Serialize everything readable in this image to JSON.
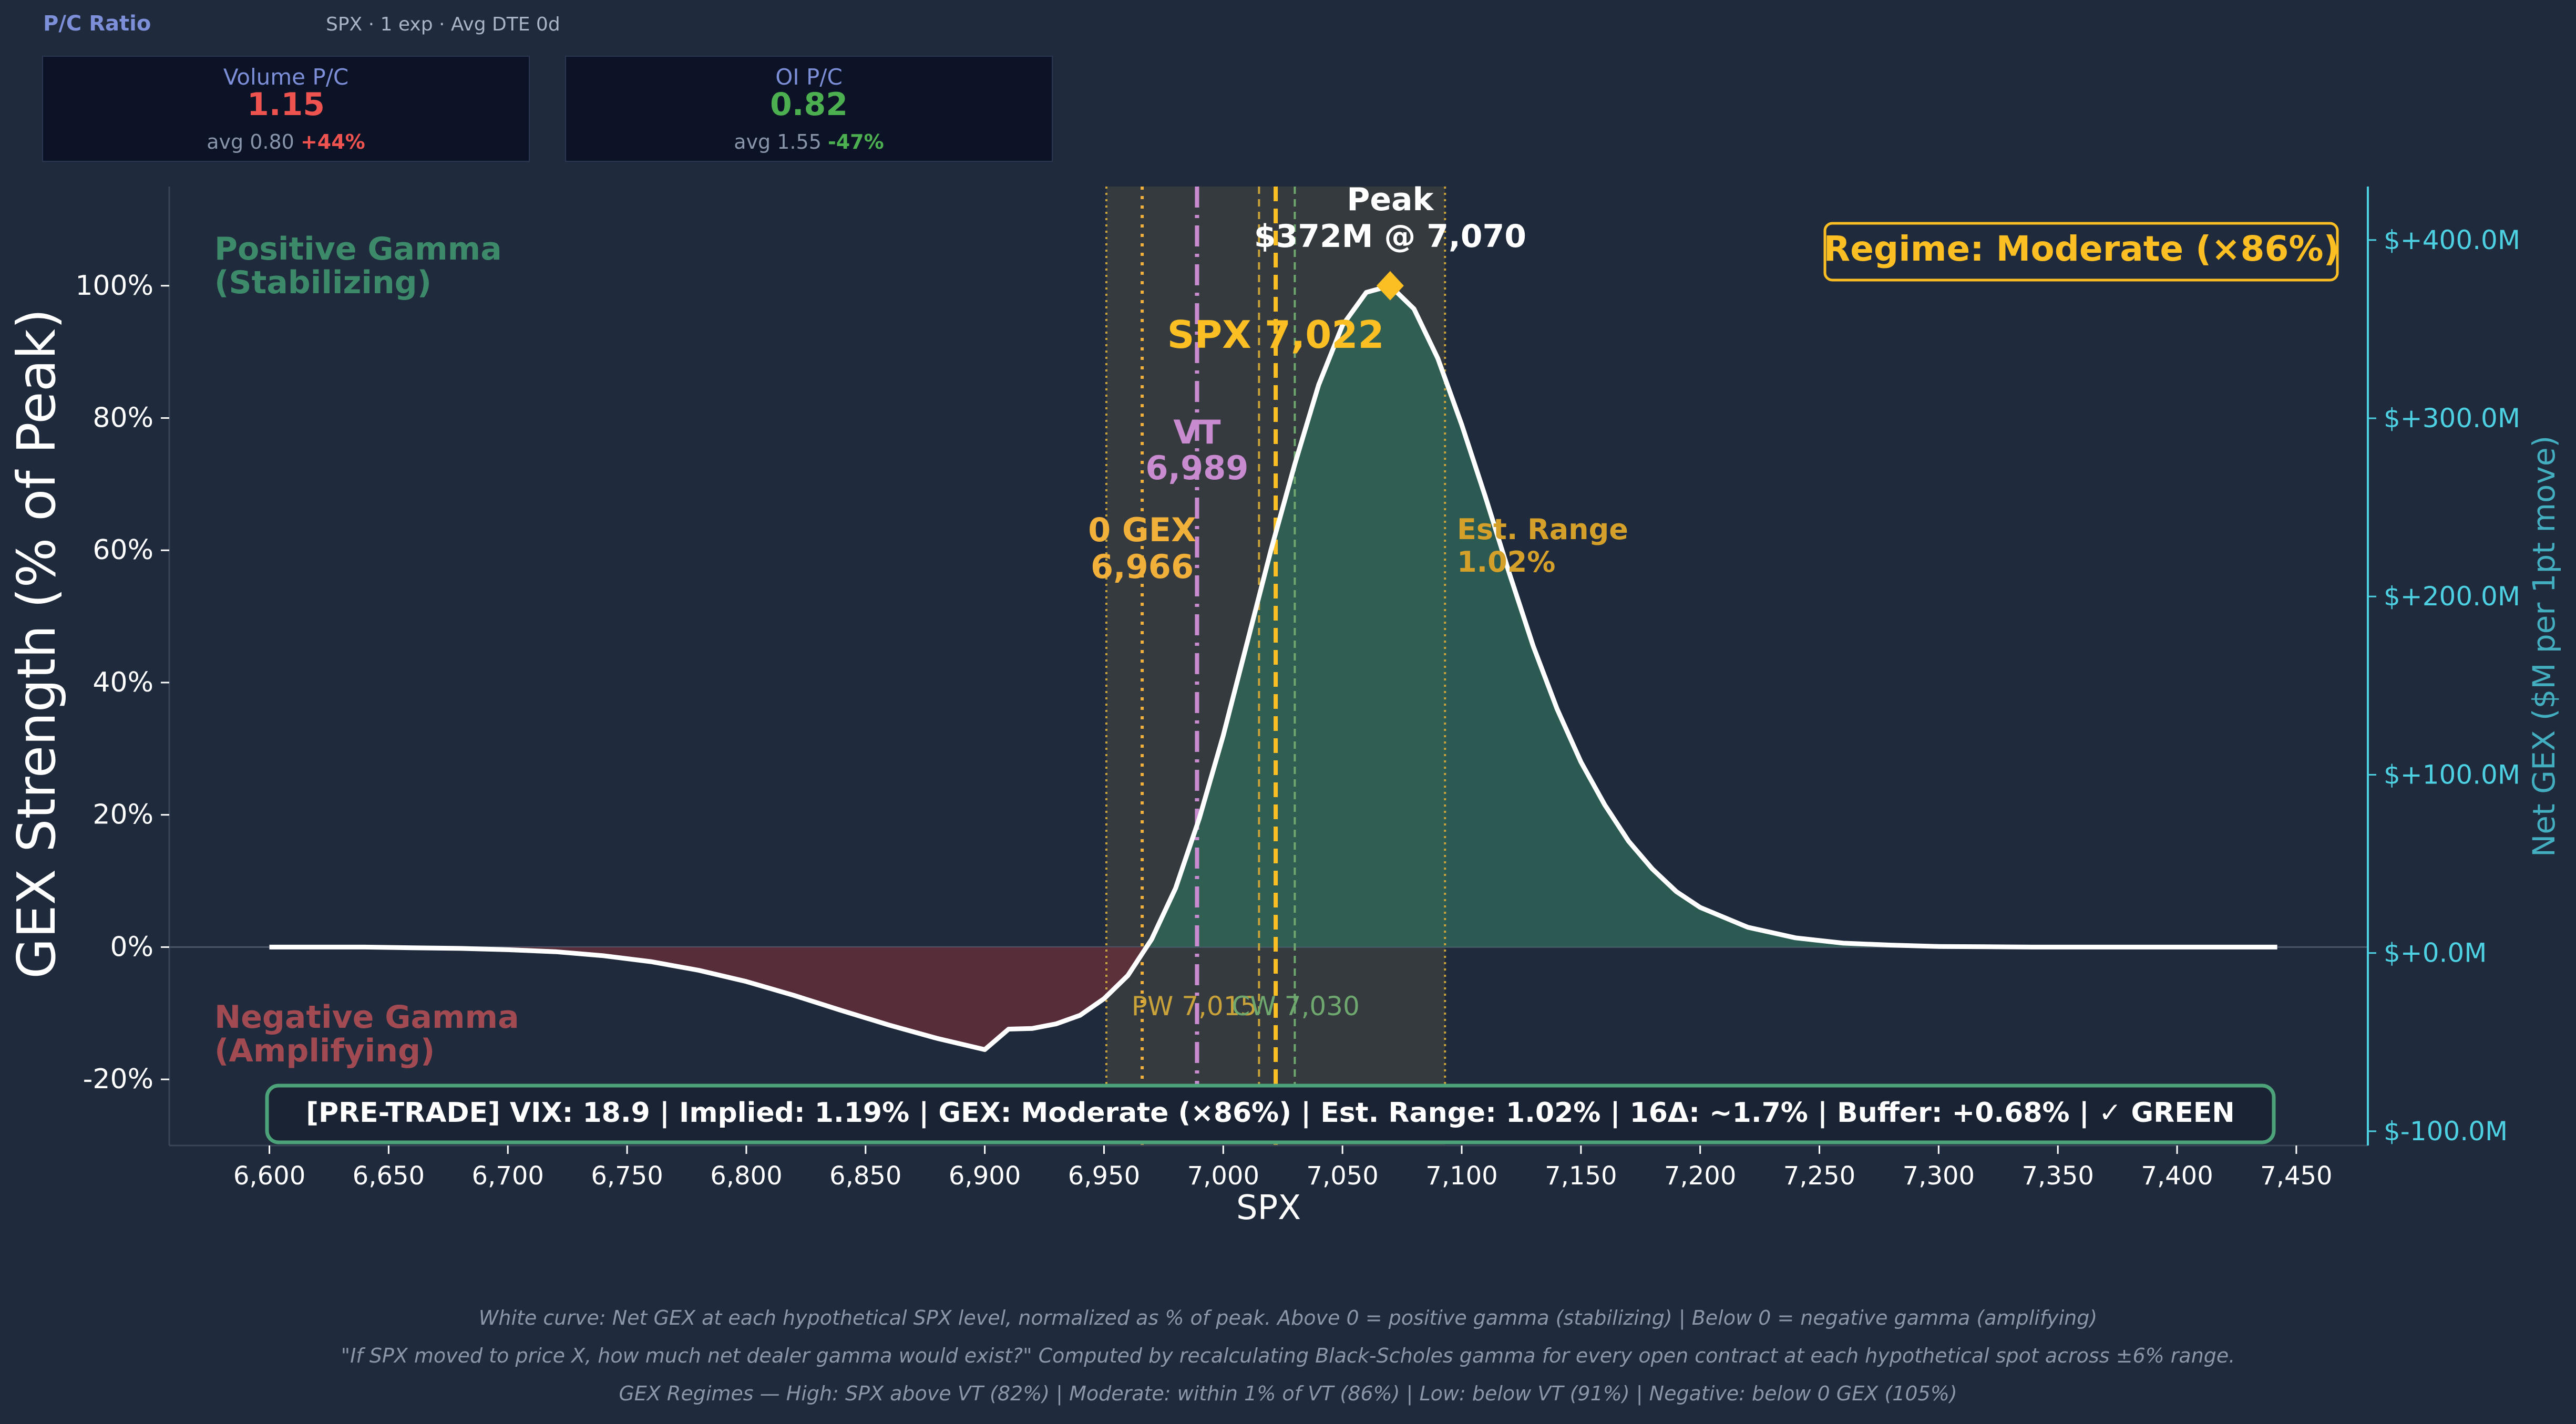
{
  "header": {
    "title": "P/C Ratio",
    "subtitle": "SPX · 1 exp · Avg DTE 0d"
  },
  "cards": [
    {
      "label": "Volume P/C",
      "value": "1.15",
      "avg_text": "avg 0.80",
      "change": "+44%",
      "color": "#ef5350"
    },
    {
      "label": "OI P/C",
      "value": "0.82",
      "avg_text": "avg 1.55",
      "change": "-47%",
      "color": "#4caf50"
    }
  ],
  "chart_data": {
    "type": "area",
    "x_label": "SPX",
    "y_label": "GEX Strength (% of Peak)",
    "y2_label": "Net GEX ($M per 1pt move)",
    "xlim": [
      6558,
      7480
    ],
    "ylim": [
      -30,
      115
    ],
    "y2lim": [
      -108,
      430
    ],
    "x_ticks": [
      6600,
      6650,
      6700,
      6750,
      6800,
      6850,
      6900,
      6950,
      7000,
      7050,
      7100,
      7150,
      7200,
      7250,
      7300,
      7350,
      7400,
      7450
    ],
    "x_tick_labels": [
      "6,600",
      "6,650",
      "6,700",
      "6,750",
      "6,800",
      "6,850",
      "6,900",
      "6,950",
      "7,000",
      "7,050",
      "7,100",
      "7,150",
      "7,200",
      "7,250",
      "7,300",
      "7,350",
      "7,400",
      "7,450"
    ],
    "y_ticks": [
      -20,
      0,
      20,
      40,
      60,
      80,
      100
    ],
    "y_tick_labels": [
      "-20%",
      "0%",
      "20%",
      "40%",
      "60%",
      "80%",
      "100%"
    ],
    "y2_ticks": [
      -100,
      0,
      100,
      200,
      300,
      400
    ],
    "y2_tick_labels": [
      "$-100.0M",
      "$+0.0M",
      "$+100.0M",
      "$+200.0M",
      "$+300.0M",
      "$+400.0M"
    ],
    "curve": {
      "x": [
        6600,
        6620,
        6640,
        6660,
        6680,
        6700,
        6720,
        6740,
        6760,
        6780,
        6800,
        6820,
        6840,
        6860,
        6880,
        6900,
        6910,
        6920,
        6930,
        6940,
        6950,
        6960,
        6970,
        6980,
        6990,
        7000,
        7010,
        7020,
        7030,
        7040,
        7050,
        7060,
        7070,
        7080,
        7090,
        7100,
        7110,
        7120,
        7130,
        7140,
        7150,
        7160,
        7170,
        7180,
        7190,
        7200,
        7220,
        7240,
        7260,
        7280,
        7300,
        7320,
        7340,
        7360,
        7380,
        7400,
        7420,
        7442
      ],
      "y": [
        0,
        0,
        0,
        -0.1,
        -0.2,
        -0.4,
        -0.7,
        -1.3,
        -2.2,
        -3.5,
        -5.2,
        -7.3,
        -9.6,
        -11.8,
        -13.8,
        -15.5,
        -12.4,
        -12.3,
        -11.6,
        -10.3,
        -7.8,
        -4.3,
        1.2,
        8.9,
        19.5,
        32,
        46,
        60,
        73,
        85,
        94,
        99,
        100,
        96.5,
        89,
        79,
        68,
        56.5,
        45.5,
        36,
        28,
        21.5,
        16,
        11.8,
        8.4,
        6,
        3,
        1.4,
        0.6,
        0.3,
        0.1,
        0.05,
        0,
        0,
        0,
        0,
        0,
        0
      ]
    },
    "shaded_range": [
      6951,
      7093
    ],
    "peak": {
      "x": 7070,
      "y": 100,
      "label_line1": "Peak",
      "label_line2": "$372M @ 7,070"
    },
    "levels": [
      {
        "name": "spx",
        "x": 7022,
        "label": "SPX 7,022",
        "color": "#fbbf24"
      },
      {
        "name": "vt",
        "x": 6989,
        "label_line1": "VT",
        "label_line2": "6,989",
        "color": "#c98bd0"
      },
      {
        "name": "zero-gex",
        "x": 6966,
        "label_line1": "0 GEX",
        "label_line2": "6,966",
        "color": "#f0b03a"
      },
      {
        "name": "put-wall",
        "x": 7015,
        "label": "PW 7,015",
        "color": "#c9a23a"
      },
      {
        "name": "call-wall",
        "x": 7030,
        "label": "CW 7,030",
        "color": "#6fa86f"
      },
      {
        "name": "est-range",
        "label_line1": "Est. Range",
        "label_line2": "1.02%",
        "color": "#d4a02a"
      }
    ],
    "regions": {
      "positive_line1": "Positive Gamma",
      "positive_line2": "(Stabilizing)",
      "negative_line1": "Negative Gamma",
      "negative_line2": "(Amplifying)"
    },
    "regime_badge": "Regime: Moderate (×86%)",
    "status_bar": "[PRE-TRADE]  VIX: 18.9  |  Implied: 1.19%  |  GEX: Moderate (×86%)  |  Est. Range: 1.02%  |  16Δ: ~1.7%  |  Buffer: +0.68%  |  ✓ GREEN",
    "colors": {
      "positive_fill": "#2f6b5a",
      "negative_fill": "#6b2f3a",
      "curve": "#ffffff",
      "right_axis": "#4dd0e1"
    }
  },
  "footer": {
    "line1": "White curve: Net GEX at each hypothetical SPX level, normalized as % of peak.  Above 0 = positive gamma (stabilizing)  |  Below 0 = negative gamma (amplifying)",
    "line2": "\"If SPX moved to price X, how much net dealer gamma would exist?\" Computed by recalculating Black-Scholes gamma for every open contract at each hypothetical spot across ±6% range.",
    "line3": "GEX Regimes — High: SPX above VT (82%)  |  Moderate: within 1% of VT (86%)  |  Low: below VT (91%)  |  Negative: below 0 GEX (105%)"
  }
}
